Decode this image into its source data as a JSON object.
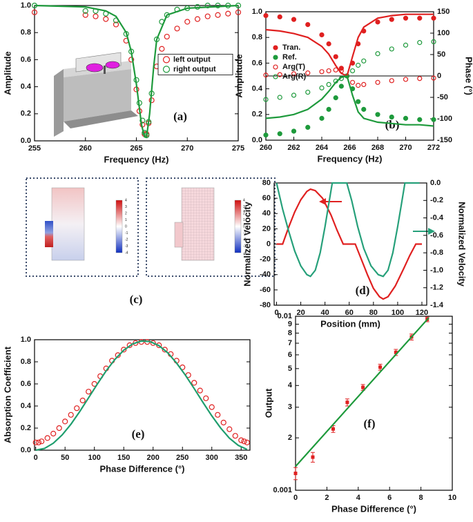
{
  "chart_data": [
    {
      "type": "line",
      "label": "(a)",
      "xlabel": "Frequency (Hz)",
      "ylabel": "Amplitude",
      "xlim": [
        255,
        275
      ],
      "xticks": [
        255,
        260,
        265,
        270,
        275
      ],
      "ylim": [
        0,
        1
      ],
      "yticks": [
        {
          "value": 0,
          "label": "0.0"
        },
        0.2,
        0.4,
        0.6,
        0.8,
        {
          "value": 1,
          "label": "1.0"
        }
      ],
      "legend": "center right",
      "legend_frame": true,
      "series": [
        {
          "name": "left output",
          "color": "#e02020",
          "marker": "open",
          "x": [
            255,
            260,
            261,
            262,
            263,
            264,
            264.5,
            265,
            265.3,
            265.6,
            265.8,
            266,
            266.2,
            266.5,
            267,
            267.5,
            268,
            269,
            270,
            271,
            272,
            273,
            274,
            275
          ],
          "values": [
            0.95,
            0.93,
            0.92,
            0.9,
            0.86,
            0.74,
            0.6,
            0.38,
            0.22,
            0.12,
            0.05,
            0.05,
            0.13,
            0.3,
            0.55,
            0.68,
            0.77,
            0.83,
            0.88,
            0.9,
            0.92,
            0.93,
            0.94,
            0.95
          ]
        },
        {
          "name": "right output",
          "color": "#1e9a3c",
          "marker": "open",
          "x": [
            255,
            260,
            261,
            262,
            263,
            264,
            264.5,
            265,
            265.3,
            265.6,
            265.8,
            266,
            266.2,
            266.5,
            267,
            267.5,
            268,
            269,
            270,
            271,
            272,
            273,
            274,
            275
          ],
          "values": [
            1.0,
            0.96,
            0.96,
            0.94,
            0.89,
            0.79,
            0.66,
            0.45,
            0.28,
            0.15,
            0.06,
            0.04,
            0.14,
            0.35,
            0.75,
            0.88,
            0.93,
            0.97,
            0.98,
            0.99,
            1.0,
            1.0,
            1.0,
            1.0
          ]
        },
        {
          "color": "#1e9a3c",
          "marker": "none",
          "x": [
            255,
            260,
            262,
            263,
            264,
            264.5,
            265,
            265.5,
            265.8,
            266,
            266.3,
            266.7,
            267,
            268,
            270,
            275
          ],
          "values": [
            1,
            0.99,
            0.96,
            0.92,
            0.8,
            0.66,
            0.42,
            0.12,
            0.03,
            0.03,
            0.2,
            0.55,
            0.75,
            0.93,
            0.98,
            1
          ]
        }
      ]
    },
    {
      "type": "line",
      "label": "(b)",
      "xlabel": "Frequency (Hz)",
      "ylabel": "Amplitude",
      "y2label": "Phase (°)",
      "xlim": [
        260,
        272
      ],
      "xticks": [
        260,
        262,
        264,
        266,
        268,
        270,
        272
      ],
      "ylim": [
        0,
        1
      ],
      "yticks": [
        {
          "value": 0,
          "label": "0.0"
        },
        0.2,
        0.4,
        0.6,
        0.8,
        {
          "value": 1,
          "label": "1.0"
        }
      ],
      "y2lim": [
        -150,
        150
      ],
      "y2ticks": [
        -150,
        -100,
        -50,
        0,
        50,
        100,
        150
      ],
      "zero_line": true,
      "legend": "upper left",
      "legend_frame": false,
      "series": [
        {
          "name": "Tran.",
          "color": "#e02020",
          "marker": "filled",
          "x": [
            260,
            261,
            262,
            263,
            264,
            264.5,
            265,
            265.4,
            265.8,
            266.2,
            266.6,
            267,
            268,
            269,
            270,
            271,
            272
          ],
          "values": [
            0.97,
            0.96,
            0.94,
            0.9,
            0.82,
            0.75,
            0.65,
            0.56,
            0.5,
            0.6,
            0.75,
            0.85,
            0.92,
            0.94,
            0.95,
            0.95,
            0.95
          ]
        },
        {
          "name": "Ref.",
          "color": "#1e9a3c",
          "marker": "filled",
          "x": [
            260,
            261,
            262,
            263,
            264,
            264.5,
            265,
            265.4,
            265.8,
            266.2,
            266.6,
            267,
            268,
            269,
            270,
            271,
            272
          ],
          "values": [
            0.04,
            0.05,
            0.07,
            0.1,
            0.17,
            0.24,
            0.33,
            0.42,
            0.5,
            0.4,
            0.3,
            0.24,
            0.2,
            0.18,
            0.17,
            0.16,
            0.16
          ]
        },
        {
          "name": "Arg(T)",
          "color": "#e02020",
          "marker": "open",
          "axis": "y2",
          "x": [
            260,
            261,
            262,
            263,
            264,
            264.5,
            265,
            265.4,
            265.8,
            266.2,
            266.6,
            267,
            268,
            269,
            270,
            271,
            272
          ],
          "values": [
            2,
            3,
            5,
            7,
            10,
            12,
            14,
            12,
            0,
            -15,
            -22,
            -20,
            -15,
            -11,
            -8,
            -6,
            -5
          ]
        },
        {
          "name": "Arg(R)",
          "color": "#1e9a3c",
          "marker": "open",
          "axis": "y2",
          "x": [
            260,
            261,
            262,
            263,
            264,
            264.5,
            265,
            265.4,
            265.8,
            266.2,
            266.6,
            267,
            268,
            269,
            270,
            271,
            272
          ],
          "values": [
            -55,
            -50,
            -45,
            -38,
            -28,
            -20,
            -12,
            -6,
            0,
            12,
            25,
            35,
            52,
            63,
            72,
            78,
            80
          ]
        },
        {
          "color": "#e02020",
          "marker": "none",
          "x": [
            260,
            261,
            262,
            263,
            264,
            264.5,
            265,
            265.4,
            265.8,
            266.2,
            266.6,
            267,
            268,
            269,
            270,
            271,
            272
          ],
          "values": [
            0.86,
            0.85,
            0.83,
            0.8,
            0.73,
            0.67,
            0.58,
            0.52,
            0.5,
            0.65,
            0.8,
            0.88,
            0.95,
            0.97,
            0.98,
            0.98,
            0.98
          ]
        },
        {
          "color": "#1e9a3c",
          "marker": "none",
          "x": [
            260,
            261,
            262,
            263,
            264,
            264.5,
            265,
            265.4,
            265.8,
            266.2,
            266.6,
            267,
            268,
            269,
            270,
            271,
            272
          ],
          "values": [
            0.17,
            0.18,
            0.2,
            0.24,
            0.32,
            0.38,
            0.45,
            0.49,
            0.5,
            0.35,
            0.22,
            0.17,
            0.14,
            0.13,
            0.12,
            0.12,
            0.11
          ]
        }
      ]
    },
    {
      "type": "line",
      "label": "(d)",
      "xlabel": "Position (mm)",
      "ylabel": "Normalized Velocity",
      "y2label": "Normalized Velocity",
      "xlim": [
        -2,
        124
      ],
      "xticks": [
        0,
        20,
        40,
        60,
        80,
        100,
        120
      ],
      "ylim": [
        -80,
        80
      ],
      "yticks": [
        -80,
        -60,
        -40,
        -20,
        0,
        20,
        40,
        60,
        80
      ],
      "y2lim": [
        -1.4,
        0
      ],
      "y2ticks": [
        -1.4,
        -1.2,
        {
          "value": -1,
          "label": "-1.0"
        },
        -0.8,
        -0.6,
        -0.4,
        -0.2,
        {
          "value": 0,
          "label": "0.0"
        }
      ],
      "series": [
        {
          "color": "#e02020",
          "marker": "none",
          "x": [
            0,
            5,
            10,
            15,
            20,
            25,
            28,
            32,
            38,
            45,
            50,
            55,
            65,
            70,
            75,
            80,
            85,
            88,
            92,
            98,
            105,
            110,
            115,
            120
          ],
          "values": [
            0,
            0,
            22,
            42,
            58,
            69,
            72,
            70,
            60,
            38,
            18,
            0,
            0,
            -20,
            -40,
            -58,
            -69,
            -72,
            -69,
            -55,
            -32,
            -15,
            0,
            0
          ]
        },
        {
          "color": "#26a07a",
          "marker": "none",
          "axis": "y2",
          "x": [
            0,
            5,
            10,
            15,
            20,
            25,
            28,
            32,
            36,
            40,
            43,
            46,
            55,
            58,
            62,
            67,
            72,
            78,
            84,
            88,
            92,
            96,
            100,
            103,
            106,
            115,
            118
          ],
          "values": [
            0,
            -0.3,
            -0.55,
            -0.78,
            -0.95,
            -1.05,
            -1.07,
            -1.0,
            -0.8,
            -0.5,
            -0.25,
            0,
            0,
            0,
            -0.2,
            -0.5,
            -0.75,
            -0.95,
            -1.05,
            -1.07,
            -1.0,
            -0.8,
            -0.5,
            -0.25,
            0,
            0,
            0
          ]
        }
      ]
    },
    {
      "type": "line",
      "label": "(e)",
      "xlabel": "Phase Difference (°)",
      "ylabel": "Absorption Coefficient",
      "xlim": [
        -2,
        365
      ],
      "xticks": [
        0,
        50,
        100,
        150,
        200,
        250,
        300,
        350
      ],
      "ylim": [
        0,
        1
      ],
      "yticks": [
        {
          "value": 0,
          "label": "0.0"
        },
        0.2,
        0.4,
        0.6,
        0.8,
        {
          "value": 1,
          "label": "1.0"
        }
      ],
      "series": [
        {
          "color": "#e02020",
          "marker": "open",
          "x": [
            0,
            5,
            10,
            20,
            30,
            40,
            50,
            60,
            70,
            80,
            90,
            100,
            110,
            120,
            130,
            140,
            150,
            160,
            170,
            180,
            190,
            200,
            210,
            220,
            230,
            240,
            250,
            260,
            270,
            280,
            290,
            300,
            310,
            320,
            330,
            340,
            350,
            355,
            360
          ],
          "values": [
            0.07,
            0.07,
            0.08,
            0.11,
            0.15,
            0.2,
            0.26,
            0.32,
            0.38,
            0.45,
            0.53,
            0.6,
            0.67,
            0.74,
            0.81,
            0.86,
            0.91,
            0.95,
            0.97,
            0.98,
            0.98,
            0.97,
            0.95,
            0.91,
            0.87,
            0.81,
            0.75,
            0.68,
            0.61,
            0.54,
            0.47,
            0.39,
            0.32,
            0.25,
            0.19,
            0.13,
            0.09,
            0.08,
            0.07
          ]
        },
        {
          "color": "#1f9e6e",
          "marker": "none",
          "x": [
            0,
            15,
            30,
            45,
            60,
            75,
            90,
            105,
            120,
            135,
            150,
            165,
            180,
            195,
            210,
            225,
            240,
            255,
            270,
            285,
            300,
            315,
            330,
            345,
            360
          ],
          "values": [
            0,
            0.016,
            0.063,
            0.138,
            0.235,
            0.35,
            0.474,
            0.599,
            0.718,
            0.822,
            0.905,
            0.962,
            0.988,
            0.983,
            0.946,
            0.881,
            0.789,
            0.679,
            0.558,
            0.432,
            0.311,
            0.201,
            0.109,
            0.044,
            0.007
          ]
        }
      ]
    },
    {
      "type": "line",
      "label": "(f)",
      "xlabel": "Phase Difference (°)",
      "ylabel": "Output",
      "xlim": [
        0,
        10
      ],
      "xticks": [
        0,
        2,
        4,
        6,
        8,
        10
      ],
      "ylim": [
        0.001,
        0.01
      ],
      "log_y": true,
      "yticks": [
        0.001,
        {
          "value": 0.002,
          "label": "2"
        },
        {
          "value": 0.003,
          "label": "3"
        },
        {
          "value": 0.004,
          "label": "4"
        },
        {
          "value": 0.005,
          "label": "5"
        },
        {
          "value": 0.006,
          "label": "6"
        },
        {
          "value": 0.007,
          "label": "7"
        },
        {
          "value": 0.008,
          "label": "8"
        },
        {
          "value": 0.009,
          "label": "9"
        },
        0.01
      ],
      "series": [
        {
          "color": "#e02020",
          "marker": "square",
          "x": [
            0,
            1.1,
            2.4,
            3.3,
            4.3,
            5.4,
            6.4,
            7.4,
            8.4
          ],
          "values": [
            0.00125,
            0.00155,
            0.00225,
            0.0032,
            0.0039,
            0.0051,
            0.0062,
            0.0076,
            0.0096
          ],
          "errors": [
            0.0001,
            0.0001,
            0.0001,
            0.00015,
            0.00015,
            0.0002,
            0.00025,
            0.0003,
            0.0003
          ]
        },
        {
          "color": "#1e9a3c",
          "marker": "none",
          "x": [
            0,
            8.5
          ],
          "values": [
            0.00137,
            0.0098
          ]
        }
      ]
    }
  ],
  "panel_c": {
    "label": "(c)",
    "colorbar_ticks": [
      4,
      3,
      2,
      1,
      0,
      -1,
      -2,
      -3,
      -4
    ]
  }
}
